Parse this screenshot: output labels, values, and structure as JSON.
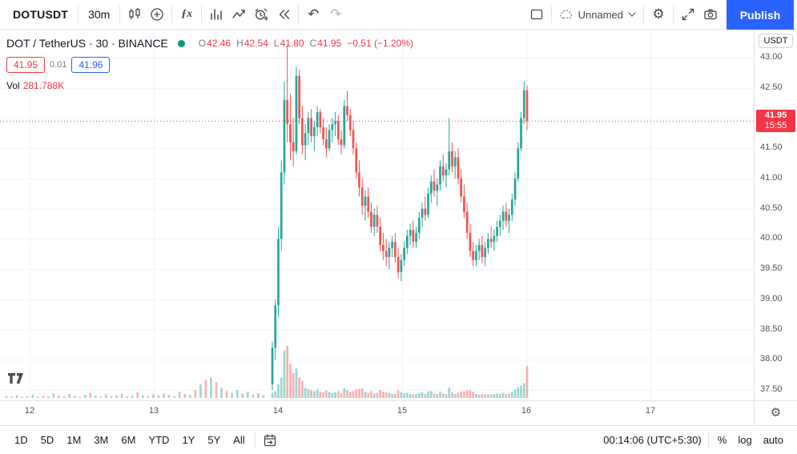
{
  "toolbar": {
    "symbol": "DOTUSDT",
    "interval": "30m",
    "layout_name": "Unnamed",
    "publish_label": "Publish"
  },
  "icons": {
    "gear": "⚙",
    "undo": "↶",
    "redo": "↷",
    "fx": "ƒx",
    "percent": "%"
  },
  "legend": {
    "title": "DOT / TetherUS · 30 · BINANCE",
    "o_label": "O",
    "o_value": "42.46",
    "h_label": "H",
    "h_value": "42.54",
    "l_label": "L",
    "l_value": "41.80",
    "c_label": "C",
    "c_value": "41.95",
    "change": "−0.51 (−1.20%)",
    "bid": "41.95",
    "spread": "0.01",
    "ask": "41.96",
    "vol_label": "Vol",
    "vol_value": "281.788K"
  },
  "price_axis": {
    "currency": "USDT",
    "tick_labels": [
      "43.00",
      "42.50",
      "42.00",
      "41.50",
      "41.00",
      "40.50",
      "40.00",
      "39.50",
      "39.00",
      "38.50",
      "38.00",
      "37.50"
    ],
    "last_price": "41.95",
    "countdown": "15:55"
  },
  "time_axis": {
    "labels": [
      "12",
      "13",
      "14",
      "15",
      "16",
      "17"
    ]
  },
  "bottom_bar": {
    "ranges": [
      "1D",
      "5D",
      "1M",
      "3M",
      "6M",
      "YTD",
      "1Y",
      "5Y",
      "All"
    ],
    "clock": "00:14:06 (UTC+5:30)",
    "log_label": "log",
    "auto_label": "auto"
  },
  "colors": {
    "up": "#26a69a",
    "down": "#ef5350",
    "last_label": "#f23645",
    "accent": "#2962ff",
    "grid": "#f0f3fa",
    "axis_text": "#50535e",
    "border": "#e0e3eb"
  },
  "chart_data": {
    "type": "candlestick",
    "symbol": "DOTUSDT",
    "description": "DOT / TetherUS",
    "exchange": "BINANCE",
    "interval_minutes": 30,
    "price_range": [
      37.5,
      43.0
    ],
    "price_ticks": [
      43.0,
      42.5,
      42.0,
      41.5,
      41.0,
      40.5,
      40.0,
      39.5,
      39.0,
      38.5,
      38.0,
      37.5
    ],
    "time_labels": [
      "12",
      "13",
      "14",
      "15",
      "16",
      "17"
    ],
    "current_price": 41.95,
    "countdown": "15:55",
    "ohlc": {
      "o": 42.46,
      "h": 42.54,
      "l": 41.8,
      "c": 41.95,
      "change": -0.51,
      "change_pct": -1.2
    },
    "volume_display": "281.788K",
    "candles": [
      [
        37.6,
        38.3,
        37.5,
        38.2,
        45
      ],
      [
        38.2,
        39.0,
        38.0,
        38.9,
        60
      ],
      [
        38.9,
        40.2,
        38.7,
        40.0,
        120
      ],
      [
        40.0,
        41.3,
        39.8,
        41.1,
        180
      ],
      [
        41.1,
        42.6,
        40.9,
        42.3,
        420
      ],
      [
        42.3,
        43.2,
        41.6,
        41.9,
        460
      ],
      [
        41.9,
        42.4,
        41.3,
        41.6,
        300
      ],
      [
        41.6,
        42.0,
        41.2,
        41.45,
        220
      ],
      [
        41.45,
        42.85,
        41.4,
        42.7,
        260
      ],
      [
        42.7,
        42.8,
        41.9,
        42.0,
        180
      ],
      [
        42.0,
        42.2,
        41.4,
        41.55,
        150
      ],
      [
        41.55,
        41.9,
        41.3,
        41.75,
        90
      ],
      [
        41.75,
        42.1,
        41.55,
        42.0,
        80
      ],
      [
        42.0,
        42.15,
        41.6,
        41.7,
        70
      ],
      [
        41.7,
        41.95,
        41.45,
        41.85,
        60
      ],
      [
        41.85,
        42.2,
        41.7,
        42.1,
        75
      ],
      [
        42.1,
        42.15,
        41.75,
        41.85,
        55
      ],
      [
        41.85,
        42.0,
        41.55,
        41.65,
        50
      ],
      [
        41.65,
        41.85,
        41.35,
        41.5,
        65
      ],
      [
        41.5,
        41.9,
        41.45,
        41.8,
        55
      ],
      [
        41.8,
        42.0,
        41.6,
        41.9,
        45
      ],
      [
        41.9,
        42.1,
        41.7,
        41.95,
        50
      ],
      [
        41.95,
        42.05,
        41.55,
        41.65,
        60
      ],
      [
        41.65,
        41.8,
        41.4,
        41.55,
        45
      ],
      [
        41.55,
        42.3,
        41.5,
        42.2,
        85
      ],
      [
        42.2,
        42.45,
        41.95,
        42.05,
        70
      ],
      [
        42.05,
        42.15,
        41.7,
        41.8,
        55
      ],
      [
        41.8,
        41.95,
        41.4,
        41.5,
        60
      ],
      [
        41.5,
        41.6,
        41.0,
        41.1,
        75
      ],
      [
        41.1,
        41.3,
        40.7,
        40.85,
        80
      ],
      [
        40.85,
        41.0,
        40.4,
        40.55,
        85
      ],
      [
        40.55,
        40.8,
        40.3,
        40.7,
        55
      ],
      [
        40.7,
        40.85,
        40.35,
        40.45,
        45
      ],
      [
        40.45,
        40.6,
        40.1,
        40.2,
        60
      ],
      [
        40.2,
        40.5,
        40.05,
        40.4,
        40
      ],
      [
        40.4,
        40.55,
        40.1,
        40.2,
        45
      ],
      [
        40.2,
        40.35,
        39.8,
        39.9,
        70
      ],
      [
        39.9,
        40.1,
        39.65,
        39.8,
        55
      ],
      [
        39.8,
        40.0,
        39.55,
        39.7,
        50
      ],
      [
        39.7,
        39.95,
        39.5,
        39.85,
        45
      ],
      [
        39.85,
        40.05,
        39.7,
        39.95,
        35
      ],
      [
        39.95,
        40.1,
        39.6,
        39.7,
        40
      ],
      [
        39.7,
        39.85,
        39.35,
        39.45,
        65
      ],
      [
        39.45,
        39.75,
        39.3,
        39.65,
        50
      ],
      [
        39.65,
        39.95,
        39.55,
        39.85,
        40
      ],
      [
        39.85,
        40.15,
        39.75,
        40.05,
        45
      ],
      [
        40.05,
        40.25,
        39.9,
        40.15,
        35
      ],
      [
        40.15,
        40.3,
        39.85,
        39.95,
        30
      ],
      [
        39.95,
        40.2,
        39.85,
        40.1,
        35
      ],
      [
        40.1,
        40.45,
        40.0,
        40.35,
        45
      ],
      [
        40.35,
        40.6,
        40.2,
        40.5,
        50
      ],
      [
        40.5,
        40.7,
        40.3,
        40.4,
        35
      ],
      [
        40.4,
        40.85,
        40.35,
        40.75,
        55
      ],
      [
        40.75,
        41.05,
        40.6,
        40.95,
        60
      ],
      [
        40.95,
        41.15,
        40.7,
        40.8,
        40
      ],
      [
        40.8,
        41.0,
        40.55,
        40.9,
        35
      ],
      [
        40.9,
        41.3,
        40.8,
        41.2,
        55
      ],
      [
        41.2,
        41.4,
        40.95,
        41.05,
        40
      ],
      [
        41.05,
        41.25,
        40.85,
        41.15,
        35
      ],
      [
        41.15,
        42.0,
        41.05,
        41.45,
        90
      ],
      [
        41.45,
        41.6,
        41.1,
        41.2,
        50
      ],
      [
        41.2,
        41.45,
        41.0,
        41.35,
        35
      ],
      [
        41.35,
        41.5,
        40.9,
        41.0,
        45
      ],
      [
        41.0,
        41.15,
        40.6,
        40.7,
        55
      ],
      [
        40.7,
        40.9,
        40.35,
        40.45,
        60
      ],
      [
        40.45,
        40.6,
        40.0,
        40.1,
        65
      ],
      [
        40.1,
        40.25,
        39.7,
        39.8,
        70
      ],
      [
        39.8,
        39.95,
        39.55,
        39.65,
        55
      ],
      [
        39.65,
        39.9,
        39.55,
        39.8,
        35
      ],
      [
        39.8,
        40.0,
        39.65,
        39.9,
        30
      ],
      [
        39.9,
        40.05,
        39.6,
        39.7,
        35
      ],
      [
        39.7,
        39.95,
        39.55,
        39.85,
        30
      ],
      [
        39.85,
        40.1,
        39.75,
        40.0,
        35
      ],
      [
        40.0,
        40.2,
        39.85,
        39.95,
        30
      ],
      [
        39.95,
        40.15,
        39.8,
        40.05,
        35
      ],
      [
        40.05,
        40.3,
        39.95,
        40.2,
        40
      ],
      [
        40.2,
        40.4,
        40.05,
        40.3,
        35
      ],
      [
        40.3,
        40.55,
        40.15,
        40.45,
        45
      ],
      [
        40.45,
        40.6,
        40.2,
        40.3,
        35
      ],
      [
        40.3,
        40.5,
        40.1,
        40.4,
        40
      ],
      [
        40.4,
        40.75,
        40.3,
        40.65,
        55
      ],
      [
        40.65,
        41.1,
        40.55,
        41.0,
        75
      ],
      [
        41.0,
        41.6,
        40.95,
        41.5,
        95
      ],
      [
        41.5,
        42.1,
        41.45,
        42.0,
        110
      ],
      [
        42.0,
        42.6,
        41.9,
        42.46,
        130
      ],
      [
        42.46,
        42.54,
        41.8,
        41.95,
        282
      ]
    ],
    "volume_history": [
      [
        18,
        "g"
      ],
      [
        12,
        "r"
      ],
      [
        25,
        "g"
      ],
      [
        10,
        "r"
      ],
      [
        15,
        "g"
      ],
      [
        30,
        "g"
      ],
      [
        12,
        "r"
      ],
      [
        20,
        "r"
      ],
      [
        15,
        "g"
      ],
      [
        40,
        "g"
      ],
      [
        22,
        "r"
      ],
      [
        14,
        "g"
      ],
      [
        35,
        "r"
      ],
      [
        18,
        "g"
      ],
      [
        10,
        "r"
      ],
      [
        28,
        "g"
      ],
      [
        45,
        "r"
      ],
      [
        20,
        "g"
      ],
      [
        12,
        "r"
      ],
      [
        30,
        "g"
      ],
      [
        16,
        "r"
      ],
      [
        24,
        "g"
      ],
      [
        38,
        "g"
      ],
      [
        14,
        "r"
      ],
      [
        20,
        "g"
      ],
      [
        50,
        "r"
      ],
      [
        26,
        "g"
      ],
      [
        18,
        "r"
      ],
      [
        32,
        "g"
      ],
      [
        22,
        "r"
      ],
      [
        40,
        "g"
      ],
      [
        28,
        "r"
      ],
      [
        15,
        "g"
      ],
      [
        55,
        "g"
      ],
      [
        35,
        "r"
      ],
      [
        25,
        "g"
      ],
      [
        70,
        "r"
      ],
      [
        120,
        "g"
      ],
      [
        160,
        "r"
      ],
      [
        180,
        "g"
      ],
      [
        140,
        "r"
      ],
      [
        90,
        "g"
      ],
      [
        60,
        "r"
      ],
      [
        45,
        "g"
      ],
      [
        70,
        "g"
      ],
      [
        38,
        "r"
      ],
      [
        55,
        "g"
      ],
      [
        30,
        "r"
      ],
      [
        42,
        "g"
      ],
      [
        25,
        "r"
      ]
    ]
  }
}
